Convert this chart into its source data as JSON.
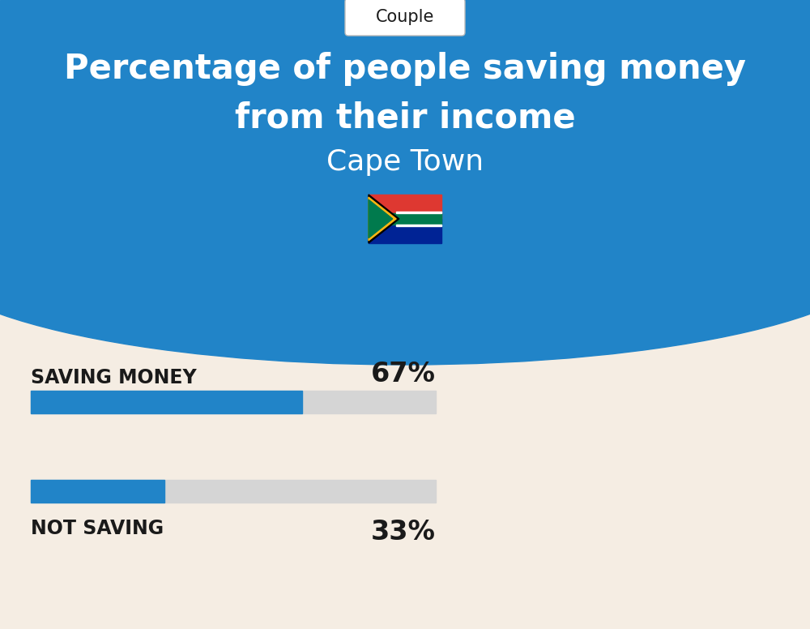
{
  "title_line1": "Percentage of people saving money",
  "title_line2": "from their income",
  "subtitle": "Cape Town",
  "tab_label": "Couple",
  "bg_top_color": "#2184C8",
  "bg_bottom_color": "#F5EDE3",
  "bar_color": "#2184C8",
  "bar_bg_color": "#D5D5D5",
  "categories": [
    "SAVING MONEY",
    "NOT SAVING"
  ],
  "values": [
    67,
    33
  ],
  "text_color_dark": "#1a1a1a",
  "text_color_white": "#ffffff",
  "tab_bg": "#ffffff",
  "title_fontsize": 30,
  "subtitle_fontsize": 26,
  "label_fontsize": 17,
  "pct_fontsize": 24,
  "tab_fontsize": 15
}
